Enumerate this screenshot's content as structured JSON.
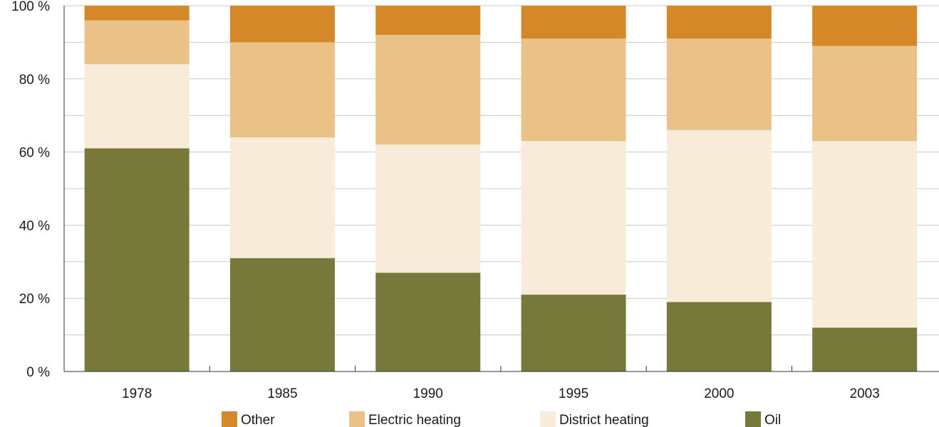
{
  "chart_data": {
    "type": "bar",
    "stacked": true,
    "categories": [
      "1978",
      "1985",
      "1990",
      "1995",
      "2000",
      "2003"
    ],
    "series": [
      {
        "name": "Oil",
        "color": "#76793a",
        "values": [
          61,
          31,
          27,
          21,
          19,
          12
        ]
      },
      {
        "name": "District heating",
        "color": "#f8ebd9",
        "values": [
          23,
          33,
          35,
          42,
          47,
          51
        ]
      },
      {
        "name": "Electric heating",
        "color": "#eac288",
        "values": [
          12,
          26,
          30,
          28,
          25,
          26
        ]
      },
      {
        "name": "Other",
        "color": "#d48827",
        "values": [
          4,
          10,
          8,
          9,
          9,
          11
        ]
      }
    ],
    "legend_order": [
      "Other",
      "Electric heating",
      "District heating",
      "Oil"
    ],
    "ylim": [
      0,
      100
    ],
    "yticks": [
      0,
      20,
      40,
      60,
      80,
      100
    ],
    "ytick_labels": [
      "0 %",
      "20 %",
      "40 %",
      "60 %",
      "80 %",
      "100 %"
    ],
    "minor_gridlines": true,
    "grid": true,
    "legend_position": "bottom",
    "title": "",
    "xlabel": "",
    "ylabel": ""
  }
}
